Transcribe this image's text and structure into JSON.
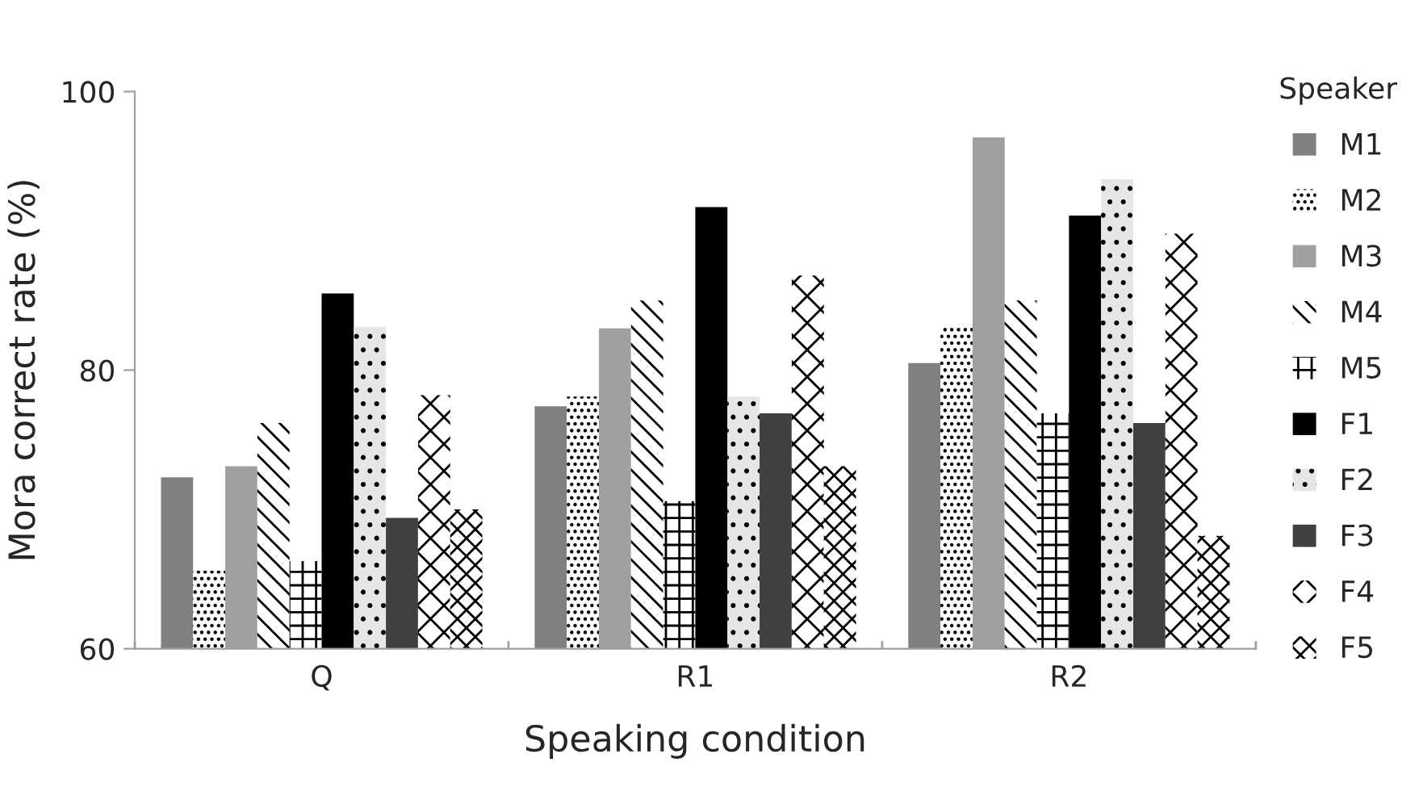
{
  "chart_data": {
    "type": "bar",
    "xlabel": "Speaking condition",
    "ylabel": "Mora correct rate (%)",
    "legend_title": "Speaker",
    "categories": [
      "Q",
      "R1",
      "R2"
    ],
    "series": [
      {
        "name": "M1",
        "color": "#808080",
        "values": [
          72.3,
          77.4,
          80.5
        ]
      },
      {
        "name": "M2",
        "color": "#ffffff",
        "values": [
          65.6,
          78.1,
          83.1
        ]
      },
      {
        "name": "M3",
        "color": "#a0a0a0",
        "values": [
          73.1,
          83.0,
          96.7
        ]
      },
      {
        "name": "M4",
        "color": "#ffffff",
        "values": [
          76.2,
          85.0,
          85.0
        ]
      },
      {
        "name": "M5",
        "color": "#ffffff",
        "values": [
          66.3,
          70.6,
          76.9
        ]
      },
      {
        "name": "F1",
        "color": "#000000",
        "values": [
          85.5,
          91.7,
          91.1
        ]
      },
      {
        "name": "F2",
        "color": "#e6e6e6",
        "values": [
          83.1,
          78.1,
          93.7
        ]
      },
      {
        "name": "F3",
        "color": "#404040",
        "values": [
          69.4,
          76.9,
          76.2
        ]
      },
      {
        "name": "F4",
        "color": "#ffffff",
        "values": [
          78.2,
          86.8,
          89.8
        ]
      },
      {
        "name": "F5",
        "color": "#ffffff",
        "values": [
          70.0,
          73.1,
          68.1
        ]
      }
    ],
    "ylim": [
      60,
      100
    ],
    "yticks": [
      60,
      80,
      100
    ],
    "grid": false,
    "legend": "right"
  }
}
